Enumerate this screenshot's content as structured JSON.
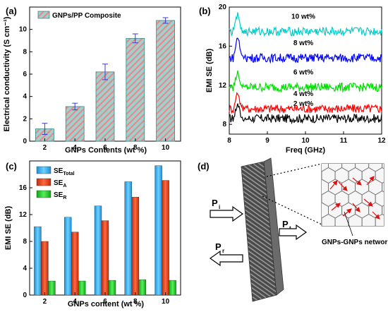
{
  "chart_data": [
    {
      "panel": "(a)",
      "type": "bar",
      "categories": [
        "2",
        "4",
        "6",
        "8",
        "10"
      ],
      "values": [
        1.1,
        3.1,
        6.2,
        9.2,
        10.8
      ],
      "errors": [
        0.5,
        0.3,
        0.7,
        0.4,
        0.25
      ],
      "legend": "GNPs/PP Composite",
      "xlabel": "GNPs Contents (wt %)",
      "ylabel": "Electrical conductivity (S cm⁻¹)",
      "ylim": [
        0,
        12
      ],
      "yticks": [
        "0",
        "2",
        "4",
        "6",
        "8",
        "10"
      ],
      "colors": {
        "fill": "#9fd1cf",
        "stripe": "#e38c8c",
        "error": "#3b3bd6"
      }
    },
    {
      "panel": "(b)",
      "type": "line",
      "xlabel": "Freq (GHz)",
      "ylabel": "EMI SE (dB)",
      "xlim": [
        8,
        12
      ],
      "ylim": [
        7,
        20
      ],
      "xticks": [
        "8",
        "9",
        "10",
        "11",
        "12"
      ],
      "yticks": [
        "8",
        "12",
        "16",
        "20"
      ],
      "series": [
        {
          "name": "2 wt%",
          "baseline": 8.6,
          "peak": 10.0,
          "color": "#000000"
        },
        {
          "name": "4 wt%",
          "baseline": 9.6,
          "peak": 11.2,
          "color": "#ff0000"
        },
        {
          "name": "6 wt%",
          "baseline": 11.8,
          "peak": 13.3,
          "color": "#00dd00"
        },
        {
          "name": "8 wt%",
          "baseline": 14.8,
          "peak": 16.9,
          "color": "#0000ff"
        },
        {
          "name": "10 wt%",
          "baseline": 17.5,
          "peak": 19.2,
          "color": "#00cccc"
        }
      ]
    },
    {
      "panel": "(c)",
      "type": "bar",
      "categories": [
        "2",
        "4",
        "6",
        "8",
        "10"
      ],
      "xlabel": "GNPs content (wt %)",
      "ylabel": "EMI SE (dB)",
      "ylim": [
        0,
        20
      ],
      "yticks": [
        "0",
        "4",
        "8",
        "12",
        "16"
      ],
      "series": [
        {
          "name": "SE",
          "subscript": "Total",
          "values": [
            10.2,
            11.6,
            13.3,
            16.9,
            19.3
          ],
          "color": "#2aa6e8"
        },
        {
          "name": "SE",
          "subscript": "A",
          "values": [
            8.0,
            9.4,
            11.1,
            14.6,
            17.1
          ],
          "color": "#e03a1e"
        },
        {
          "name": "SE",
          "subscript": "R",
          "values": [
            2.1,
            2.1,
            2.2,
            2.3,
            2.2
          ],
          "color": "#19c21e"
        }
      ]
    }
  ],
  "diagram": {
    "panel": "(d)",
    "incident": "P",
    "incident_sub": "i",
    "reflected": "P",
    "reflected_sub": "r",
    "transmitted": "P",
    "transmitted_sub": "t",
    "network_label": "GNPs-GNPs network"
  }
}
